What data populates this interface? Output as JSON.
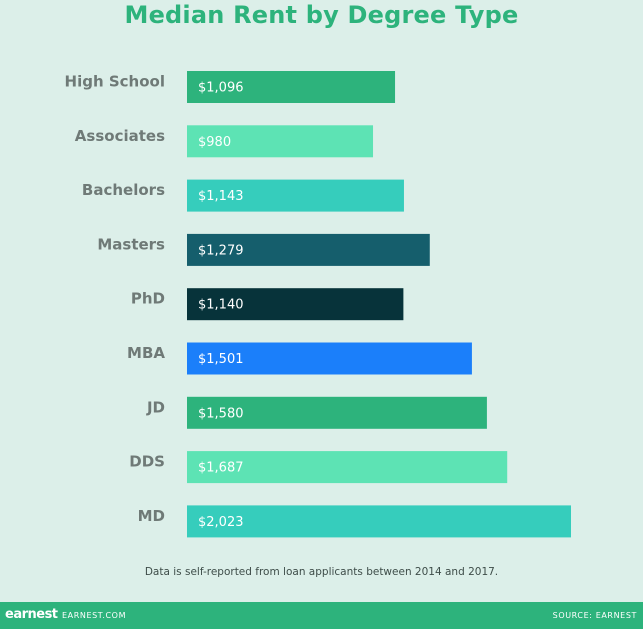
{
  "chart_data": {
    "type": "bar",
    "orientation": "horizontal",
    "title": "Median Rent by Degree Type",
    "categories": [
      "High School",
      "Associates",
      "Bachelors",
      "Masters",
      "PhD",
      "MBA",
      "JD",
      "DDS",
      "MD"
    ],
    "values": [
      1096,
      980,
      1143,
      1279,
      1140,
      1501,
      1580,
      1687,
      2023
    ],
    "value_labels": [
      "$1,096",
      "$980",
      "$1,143",
      "$1,279",
      "$1,140",
      "$1,501",
      "$1,580",
      "$1,687",
      "$2,023"
    ],
    "colors": [
      "#2db37c",
      "#5de3b4",
      "#36cdbc",
      "#155e6c",
      "#07333a",
      "#1b7ffa",
      "#2db37c",
      "#5de3b4",
      "#36cdbc"
    ],
    "xlim": [
      0,
      2023
    ],
    "grid": false,
    "legend": "none"
  },
  "note": "Data is self-reported from loan applicants between 2014 and 2017.",
  "footer": {
    "logo": "earnest",
    "site": "EARNEST.COM",
    "source": "SOURCE: EARNEST"
  }
}
